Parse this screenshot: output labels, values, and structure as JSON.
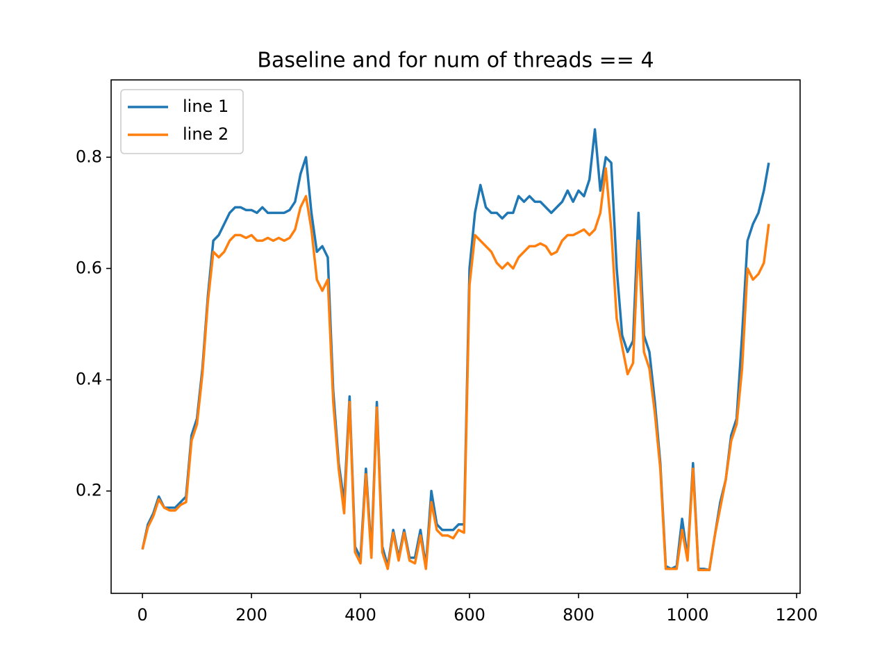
{
  "chart_data": {
    "type": "line",
    "title": "Baseline and for num of threads == 4",
    "x": [
      0,
      10,
      20,
      30,
      40,
      50,
      60,
      70,
      80,
      90,
      100,
      110,
      120,
      130,
      140,
      150,
      160,
      170,
      180,
      190,
      200,
      210,
      220,
      230,
      240,
      250,
      260,
      270,
      280,
      290,
      300,
      310,
      320,
      330,
      340,
      350,
      360,
      370,
      380,
      390,
      400,
      410,
      420,
      430,
      440,
      450,
      460,
      470,
      480,
      490,
      500,
      510,
      520,
      530,
      540,
      550,
      560,
      570,
      580,
      590,
      600,
      610,
      620,
      630,
      640,
      650,
      660,
      670,
      680,
      690,
      700,
      710,
      720,
      730,
      740,
      750,
      760,
      770,
      780,
      790,
      800,
      810,
      820,
      830,
      840,
      850,
      860,
      870,
      880,
      890,
      900,
      910,
      920,
      930,
      940,
      950,
      960,
      970,
      980,
      990,
      1000,
      1010,
      1020,
      1030,
      1040,
      1050,
      1060,
      1070,
      1080,
      1090,
      1100,
      1110,
      1120,
      1130,
      1140,
      1149
    ],
    "series": [
      {
        "name": "line 1",
        "color": "#1f77b4",
        "values": [
          0.095,
          0.14,
          0.16,
          0.19,
          0.17,
          0.17,
          0.17,
          0.18,
          0.19,
          0.3,
          0.33,
          0.42,
          0.55,
          0.65,
          0.66,
          0.68,
          0.7,
          0.71,
          0.71,
          0.705,
          0.705,
          0.7,
          0.71,
          0.7,
          0.7,
          0.7,
          0.7,
          0.705,
          0.72,
          0.77,
          0.8,
          0.7,
          0.63,
          0.64,
          0.62,
          0.38,
          0.25,
          0.18,
          0.37,
          0.1,
          0.08,
          0.24,
          0.09,
          0.36,
          0.1,
          0.065,
          0.13,
          0.08,
          0.13,
          0.08,
          0.08,
          0.13,
          0.065,
          0.2,
          0.14,
          0.13,
          0.13,
          0.13,
          0.14,
          0.14,
          0.6,
          0.7,
          0.75,
          0.71,
          0.7,
          0.7,
          0.69,
          0.7,
          0.7,
          0.73,
          0.72,
          0.73,
          0.72,
          0.72,
          0.71,
          0.7,
          0.71,
          0.72,
          0.74,
          0.72,
          0.74,
          0.73,
          0.76,
          0.85,
          0.74,
          0.8,
          0.79,
          0.6,
          0.48,
          0.45,
          0.47,
          0.7,
          0.48,
          0.45,
          0.36,
          0.25,
          0.065,
          0.06,
          0.065,
          0.15,
          0.08,
          0.25,
          0.06,
          0.06,
          0.058,
          0.12,
          0.18,
          0.22,
          0.3,
          0.33,
          0.48,
          0.65,
          0.68,
          0.7,
          0.74,
          0.79
        ]
      },
      {
        "name": "line 2",
        "color": "#ff7f0e",
        "values": [
          0.095,
          0.135,
          0.155,
          0.185,
          0.17,
          0.165,
          0.165,
          0.175,
          0.18,
          0.29,
          0.32,
          0.41,
          0.54,
          0.63,
          0.62,
          0.63,
          0.65,
          0.66,
          0.66,
          0.655,
          0.66,
          0.65,
          0.65,
          0.655,
          0.65,
          0.655,
          0.65,
          0.655,
          0.67,
          0.71,
          0.73,
          0.67,
          0.58,
          0.56,
          0.58,
          0.36,
          0.24,
          0.16,
          0.36,
          0.09,
          0.07,
          0.23,
          0.08,
          0.35,
          0.09,
          0.06,
          0.125,
          0.075,
          0.125,
          0.075,
          0.07,
          0.12,
          0.06,
          0.18,
          0.13,
          0.12,
          0.12,
          0.115,
          0.13,
          0.125,
          0.57,
          0.66,
          0.65,
          0.64,
          0.63,
          0.61,
          0.6,
          0.61,
          0.6,
          0.62,
          0.63,
          0.64,
          0.64,
          0.645,
          0.64,
          0.625,
          0.63,
          0.65,
          0.66,
          0.66,
          0.665,
          0.67,
          0.66,
          0.67,
          0.7,
          0.78,
          0.67,
          0.51,
          0.46,
          0.41,
          0.43,
          0.65,
          0.45,
          0.42,
          0.34,
          0.24,
          0.06,
          0.06,
          0.06,
          0.13,
          0.075,
          0.24,
          0.058,
          0.058,
          0.058,
          0.12,
          0.17,
          0.22,
          0.29,
          0.32,
          0.42,
          0.6,
          0.58,
          0.59,
          0.61,
          0.68
        ]
      }
    ],
    "xlim": [
      -57.45,
      1206.45
    ],
    "ylim": [
      0.016,
      0.939
    ],
    "xticks": [
      0,
      200,
      400,
      600,
      800,
      1000,
      1200
    ],
    "yticks": [
      0.2,
      0.4,
      0.6,
      0.8
    ],
    "legend": "upper left"
  }
}
